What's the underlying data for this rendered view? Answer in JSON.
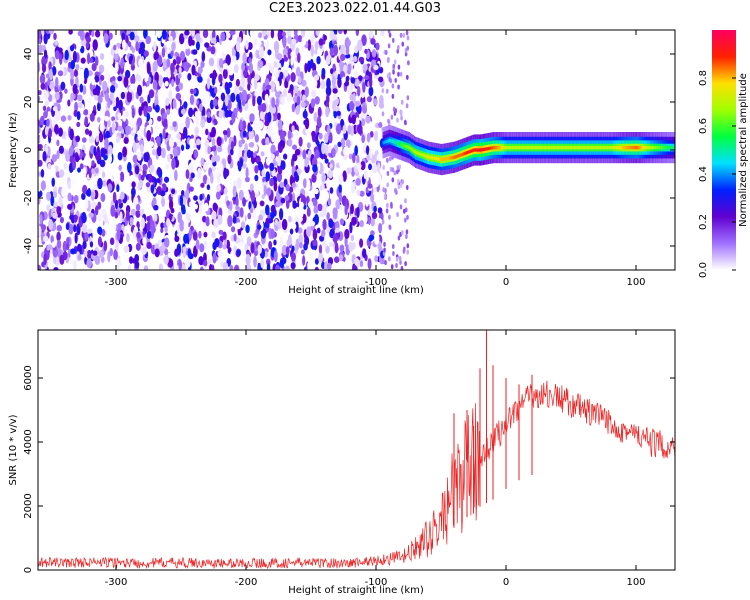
{
  "figure_title": "C2E3.2023.022.01.44.G03",
  "chart_data": [
    {
      "type": "heatmap",
      "title": "C2E3.2023.022.01.44.G03",
      "xlabel": "Height of straight line (km)",
      "ylabel": "Frequency (Hz)",
      "xlim": [
        -360,
        130
      ],
      "ylim": [
        -50,
        50
      ],
      "x_ticks": [
        -300,
        -200,
        -100,
        0,
        100
      ],
      "y_ticks": [
        -40,
        -20,
        0,
        20,
        40
      ],
      "noise_region_x": [
        -360,
        -95
      ],
      "noise_tail_x": [
        -95,
        -75
      ],
      "signal_trace": {
        "x": [
          -95,
          -90,
          -85,
          -80,
          -75,
          -70,
          -65,
          -60,
          -55,
          -50,
          -45,
          -40,
          -35,
          -30,
          -25,
          -20,
          -15,
          -10,
          -5,
          0,
          10,
          20,
          30,
          40,
          50,
          60,
          70,
          80,
          90,
          100,
          110,
          120,
          130
        ],
        "frequency": [
          3,
          4,
          3,
          2,
          1,
          -1,
          -2,
          -3,
          -3.5,
          -4,
          -3.5,
          -3,
          -2,
          -1,
          0,
          0,
          0.5,
          1,
          1,
          1,
          1,
          1,
          1,
          1,
          1,
          1,
          1,
          1,
          1,
          1,
          1,
          1,
          1
        ],
        "amplitude": [
          0.4,
          0.45,
          0.5,
          0.6,
          0.65,
          0.7,
          0.7,
          0.75,
          0.75,
          0.8,
          0.8,
          0.85,
          0.85,
          0.9,
          0.9,
          0.95,
          0.9,
          0.85,
          0.8,
          0.7,
          0.7,
          0.7,
          0.7,
          0.7,
          0.7,
          0.7,
          0.7,
          0.7,
          0.8,
          0.85,
          0.7,
          0.6,
          0.5
        ]
      },
      "colorbar": {
        "label": "Normalized spectral amplitude",
        "range": [
          0,
          1
        ],
        "ticks": [
          "0.0",
          "0.2",
          "0.4",
          "0.6",
          "0.8"
        ],
        "tick_values": [
          0.0,
          0.2,
          0.4,
          0.6,
          0.8
        ],
        "colors": [
          "#ffffff",
          "#a070ff",
          "#6000d0",
          "#0020ff",
          "#00e0ff",
          "#00ff40",
          "#a0ff00",
          "#ffe000",
          "#ff2000",
          "#ff0060"
        ]
      },
      "grid": false,
      "legend": "none"
    },
    {
      "type": "line",
      "xlabel": "Height of straight line (km)",
      "ylabel": "SNR (10 * v/v)",
      "xlim": [
        -360,
        130
      ],
      "ylim": [
        0,
        7500
      ],
      "x_ticks": [
        -300,
        -200,
        -100,
        0,
        100
      ],
      "y_ticks": [
        0,
        2000,
        4000,
        6000
      ],
      "series": [
        {
          "color": "#ee2222",
          "x": [
            -360,
            -340,
            -320,
            -300,
            -280,
            -260,
            -240,
            -220,
            -200,
            -180,
            -160,
            -140,
            -120,
            -100,
            -90,
            -80,
            -75,
            -70,
            -65,
            -60,
            -55,
            -50,
            -45,
            -40,
            -35,
            -30,
            -25,
            -20,
            -15,
            -10,
            -5,
            0,
            5,
            10,
            15,
            20,
            25,
            30,
            35,
            40,
            50,
            60,
            70,
            80,
            90,
            100,
            110,
            120,
            130
          ],
          "values": [
            250,
            220,
            240,
            230,
            210,
            230,
            220,
            200,
            220,
            210,
            230,
            220,
            210,
            300,
            350,
            400,
            500,
            650,
            800,
            1000,
            1200,
            1500,
            2000,
            2400,
            2800,
            3000,
            3200,
            3600,
            3800,
            4000,
            4300,
            4600,
            4900,
            5100,
            5300,
            5400,
            5500,
            5500,
            5450,
            5400,
            5200,
            5000,
            4800,
            4600,
            4400,
            4200,
            4000,
            3900,
            3800
          ],
          "spikes": [
            [
              -40,
              4900
            ],
            [
              -30,
              5000
            ],
            [
              -25,
              4500
            ],
            [
              -20,
              6300
            ],
            [
              -15,
              7500
            ],
            [
              -10,
              6400
            ],
            [
              0,
              6000
            ],
            [
              10,
              5800
            ],
            [
              20,
              6100
            ]
          ]
        }
      ],
      "grid": false,
      "legend": "none"
    }
  ]
}
